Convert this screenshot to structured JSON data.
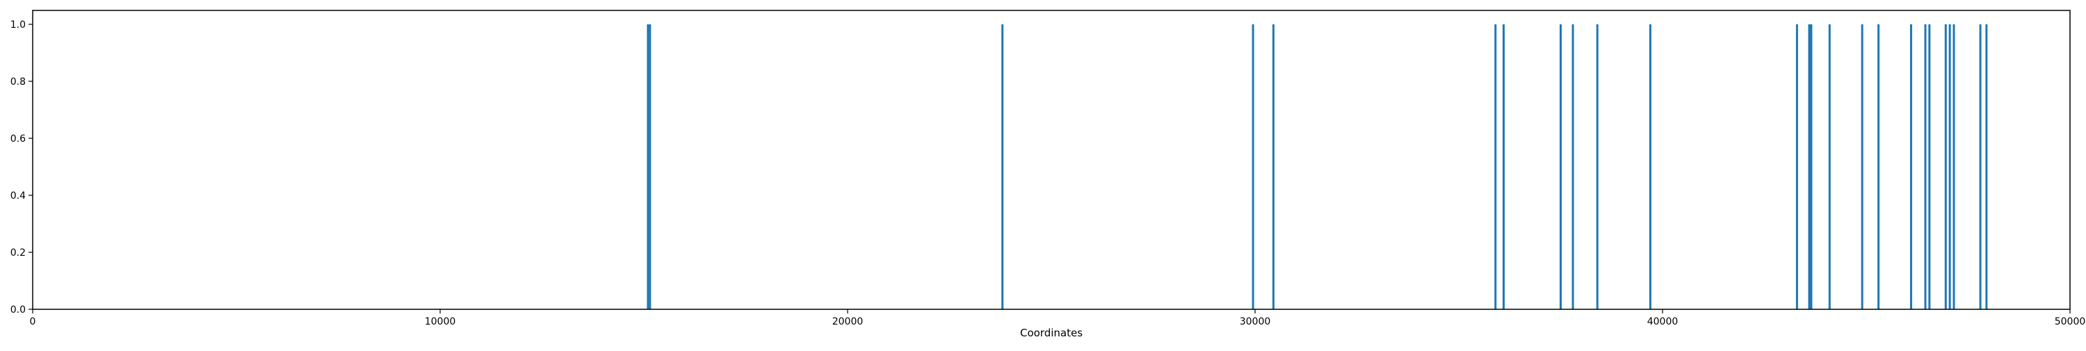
{
  "chart_data": {
    "type": "bar",
    "title": "",
    "xlabel": "Coordinates",
    "ylabel": "",
    "xlim": [
      0,
      50000
    ],
    "ylim": [
      0.0,
      1.0
    ],
    "xticks": [
      0,
      10000,
      20000,
      30000,
      40000,
      50000
    ],
    "yticks": [
      0.0,
      0.2,
      0.4,
      0.6,
      0.8,
      1.0
    ],
    "grid": false,
    "legend": "none",
    "series": [
      {
        "color": "#1f77b4",
        "x": [
          15100,
          15150,
          23800,
          29950,
          30450,
          35900,
          36100,
          37500,
          37800,
          38400,
          39700,
          43300,
          43600,
          43650,
          44100,
          44900,
          45300,
          46100,
          46450,
          46550,
          46950,
          47050,
          47150,
          47800,
          47950
        ],
        "values": [
          1,
          1,
          1,
          1,
          1,
          1,
          1,
          1,
          1,
          1,
          1,
          1,
          1,
          1,
          1,
          1,
          1,
          1,
          1,
          1,
          1,
          1,
          1,
          1,
          1
        ]
      }
    ]
  }
}
